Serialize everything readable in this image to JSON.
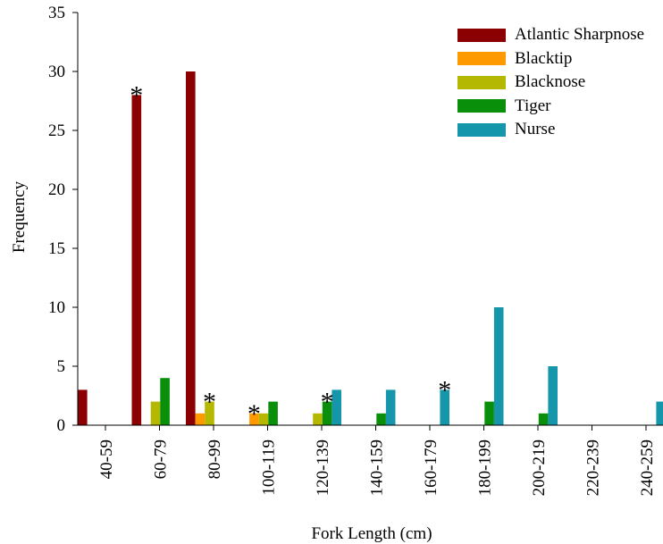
{
  "chart_data": {
    "type": "bar",
    "xlabel": "Fork Length (cm)",
    "ylabel": "Frequency",
    "ylim": [
      0,
      35
    ],
    "yticks": [
      0,
      5,
      10,
      15,
      20,
      25,
      30,
      35
    ],
    "categories": [
      "40-59",
      "60-79",
      "80-99",
      "100-119",
      "120-139",
      "140-159",
      "160-179",
      "180-199",
      "200-219",
      "220-239",
      "240-259"
    ],
    "series": [
      {
        "name": "Atlantic Sharpnose",
        "color": "#8b0000",
        "values": [
          3,
          28,
          30,
          0,
          0,
          0,
          0,
          0,
          0,
          0,
          0
        ]
      },
      {
        "name": "Blacktip",
        "color": "#ff9900",
        "values": [
          0,
          0,
          1,
          1,
          0,
          0,
          0,
          0,
          0,
          0,
          0
        ]
      },
      {
        "name": "Blacknose",
        "color": "#b5b800",
        "values": [
          0,
          2,
          2,
          1,
          1,
          0,
          0,
          0,
          0,
          0,
          0
        ]
      },
      {
        "name": "Tiger",
        "color": "#0a8f0a",
        "values": [
          0,
          4,
          0,
          2,
          2,
          1,
          0,
          2,
          1,
          0,
          0
        ]
      },
      {
        "name": "Nurse",
        "color": "#1596aa",
        "values": [
          0,
          0,
          0,
          0,
          3,
          3,
          3,
          10,
          5,
          0,
          2
        ]
      }
    ],
    "annotations": [
      {
        "text": "*",
        "category": "60-79",
        "series": "Atlantic Sharpnose"
      },
      {
        "text": "*",
        "category": "80-99",
        "series": "Blacknose"
      },
      {
        "text": "*",
        "category": "100-119",
        "series": "Blacktip"
      },
      {
        "text": "*",
        "category": "120-139",
        "series": "Tiger"
      },
      {
        "text": "*",
        "category": "160-179",
        "series": "Nurse"
      }
    ],
    "legend_position": "top-right",
    "grid": false
  }
}
